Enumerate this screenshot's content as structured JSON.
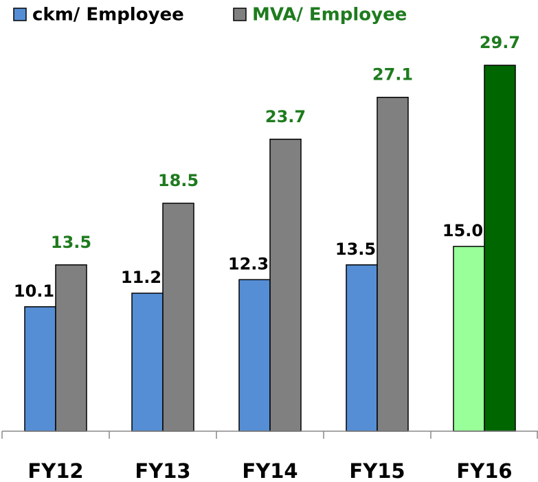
{
  "chart_data": {
    "type": "bar",
    "categories": [
      "FY12",
      "FY13",
      "FY14",
      "FY15",
      "FY16"
    ],
    "series": [
      {
        "name": "ckm/ Employee",
        "color": "#558ed5",
        "label_color": "#000000",
        "colors": [
          "#558ed5",
          "#558ed5",
          "#558ed5",
          "#558ed5",
          "#99ff99"
        ],
        "values": [
          10.1,
          11.2,
          12.3,
          13.5,
          15.0
        ],
        "value_labels": [
          "10.1",
          "11.2",
          "12.3",
          "13.5",
          "15.0"
        ]
      },
      {
        "name": "MVA/ Employee",
        "color": "#808080",
        "label_color": "#1e7b1e",
        "colors": [
          "#808080",
          "#808080",
          "#808080",
          "#808080",
          "#006600"
        ],
        "values": [
          13.5,
          18.5,
          23.7,
          27.1,
          29.7
        ]
      }
    ],
    "ylim": [
      0,
      35
    ]
  }
}
